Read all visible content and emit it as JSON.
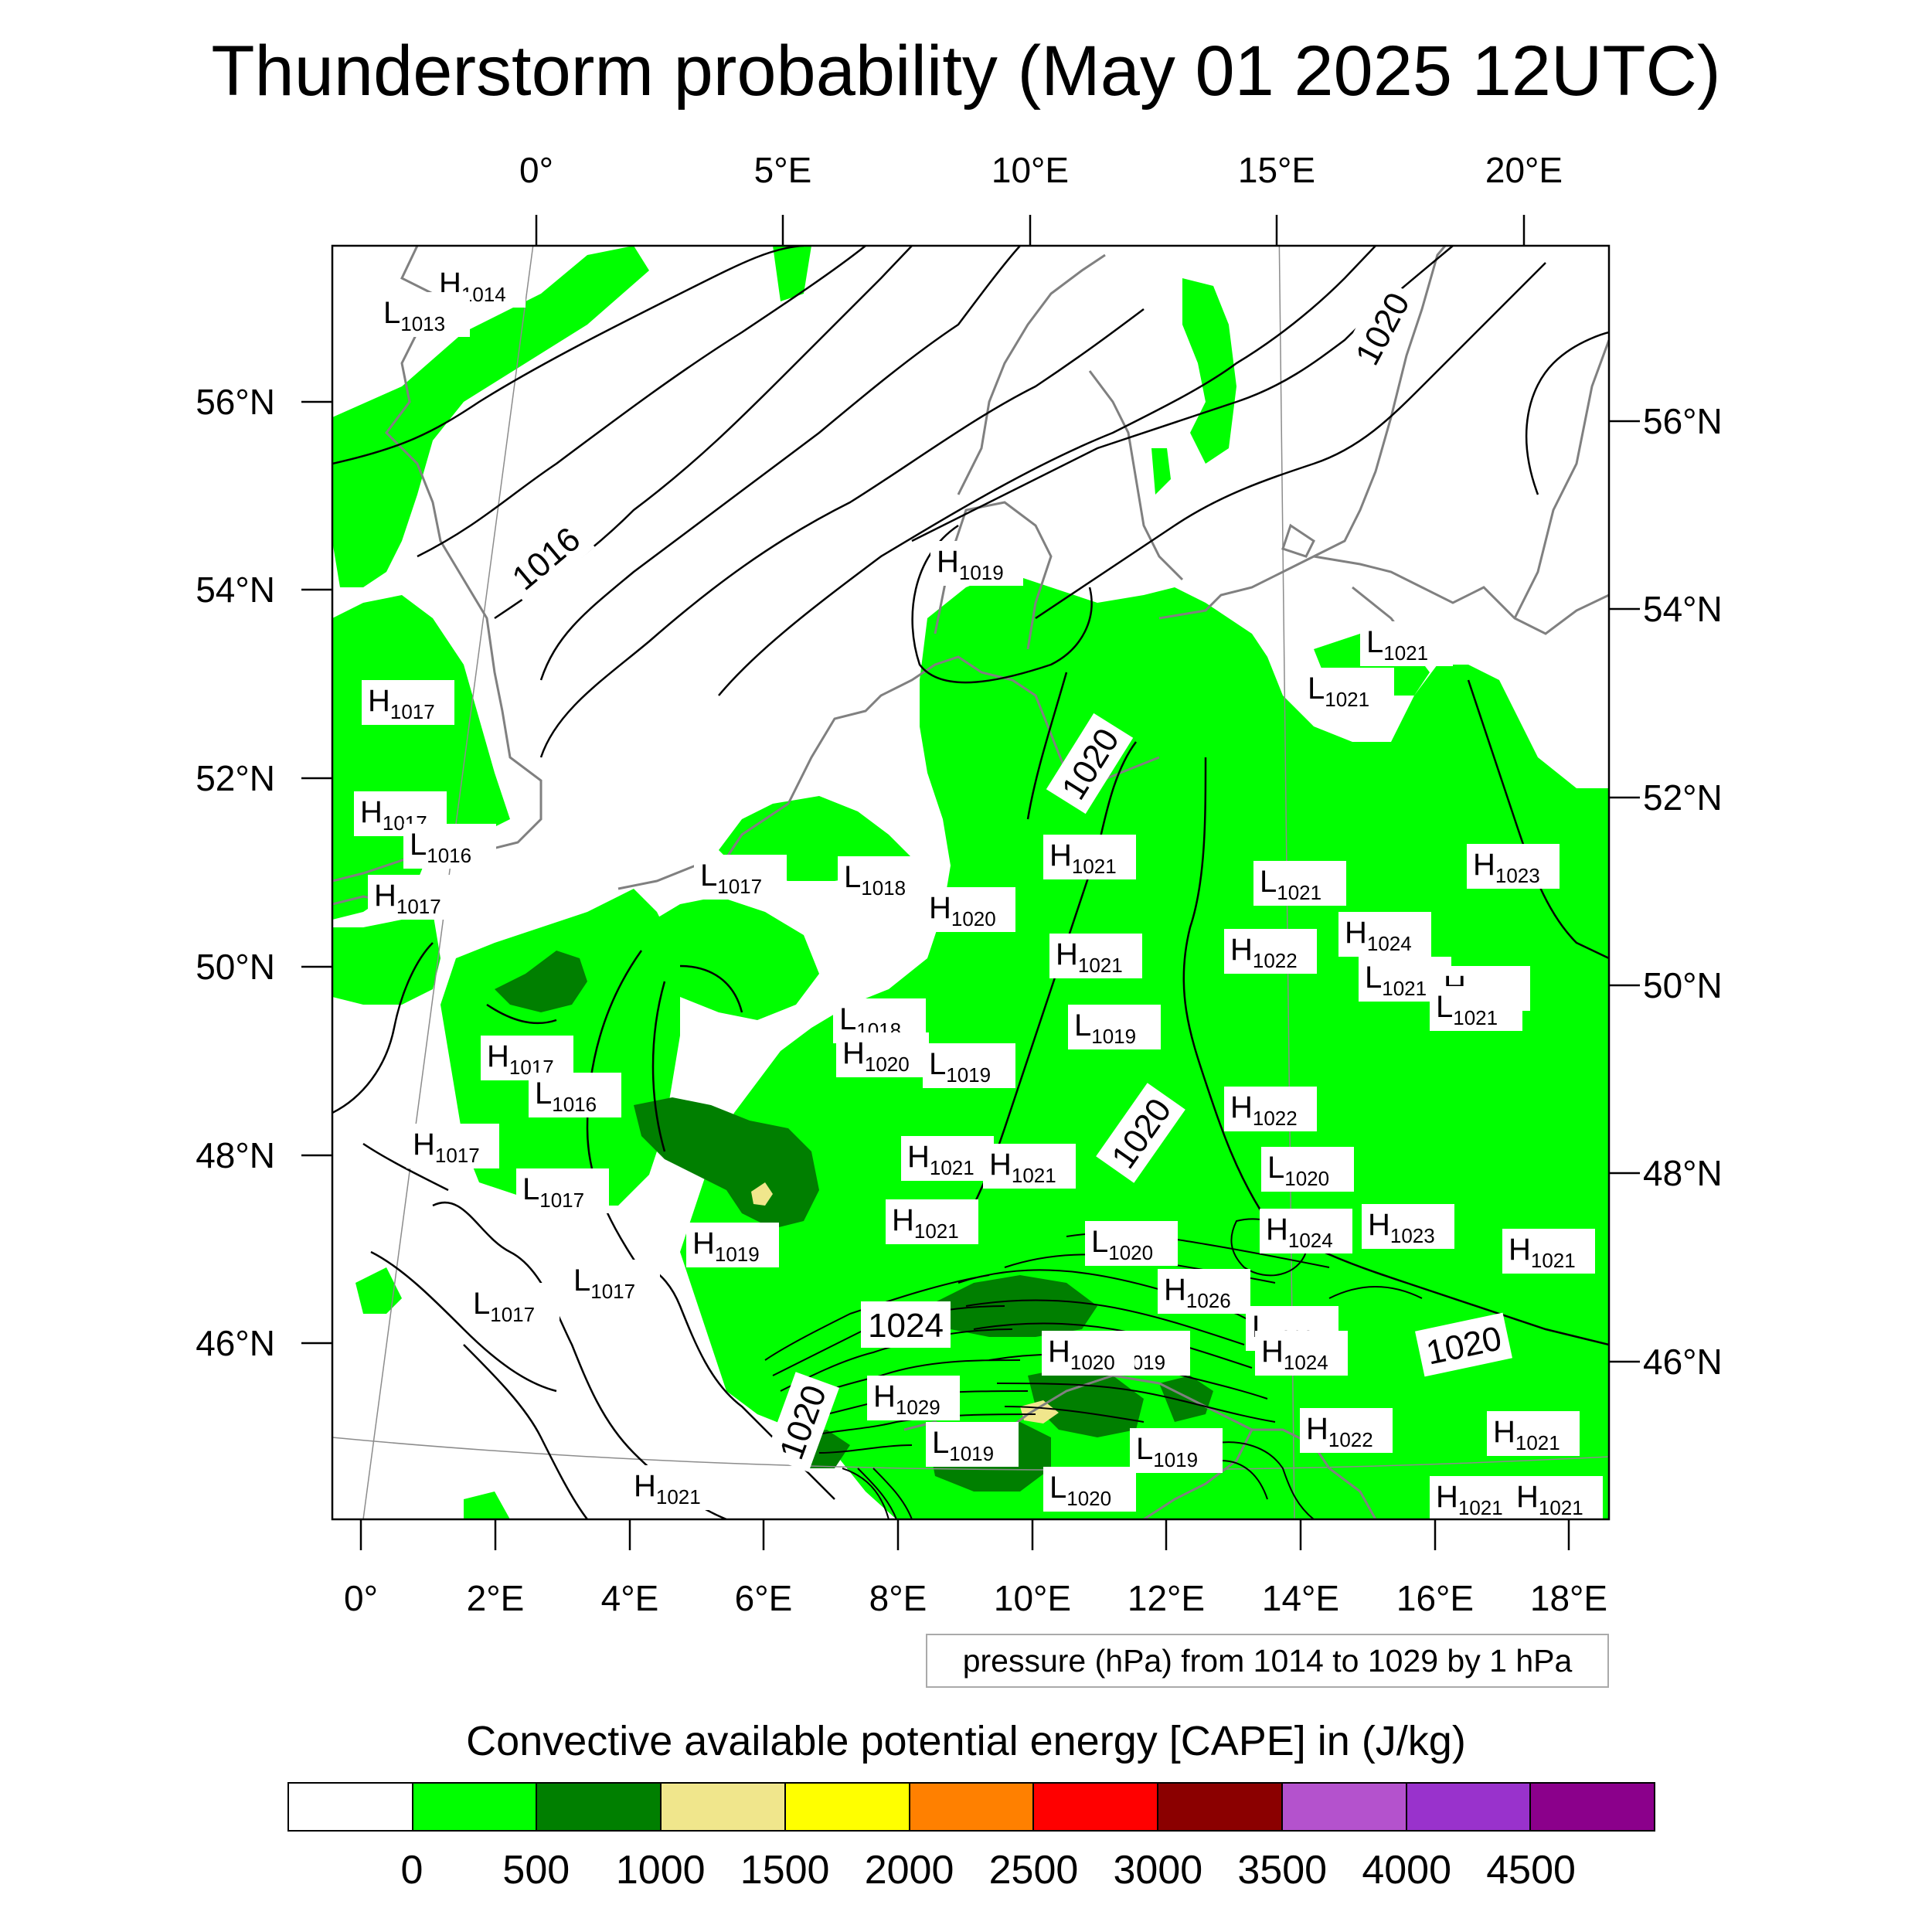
{
  "title": "Thunderstorm probability (May 01 2025 12UTC)",
  "axes": {
    "top_ticks": [
      "0°",
      "5°E",
      "10°E",
      "15°E",
      "20°E"
    ],
    "bottom_ticks": [
      "0°",
      "2°E",
      "4°E",
      "6°E",
      "8°E",
      "10°E",
      "12°E",
      "14°E",
      "16°E",
      "18°E"
    ],
    "left_ticks": [
      "56°N",
      "54°N",
      "52°N",
      "50°N",
      "48°N",
      "46°N"
    ],
    "right_ticks": [
      "56°N",
      "54°N",
      "52°N",
      "50°N",
      "48°N",
      "46°N"
    ]
  },
  "pressure_note": "pressure (hPa) from 1014 to 1029 by 1 hPa",
  "contour_labels": [
    "1016",
    "1020",
    "1020",
    "1020",
    "1024",
    "1020",
    "1020"
  ],
  "pressure_centers": [
    {
      "kind": "H",
      "value": "1014"
    },
    {
      "kind": "L",
      "value": "1013"
    },
    {
      "kind": "H",
      "value": "1019"
    },
    {
      "kind": "H",
      "value": "1017"
    },
    {
      "kind": "H",
      "value": "1017"
    },
    {
      "kind": "L",
      "value": "1016"
    },
    {
      "kind": "H",
      "value": "1017"
    },
    {
      "kind": "L",
      "value": "1017"
    },
    {
      "kind": "L",
      "value": "1018"
    },
    {
      "kind": "H",
      "value": "1020"
    },
    {
      "kind": "H",
      "value": "1021"
    },
    {
      "kind": "L",
      "value": "1021"
    },
    {
      "kind": "L",
      "value": "1021"
    },
    {
      "kind": "L",
      "value": "1021"
    },
    {
      "kind": "H",
      "value": "1023"
    },
    {
      "kind": "H",
      "value": "1021"
    },
    {
      "kind": "H",
      "value": "1022"
    },
    {
      "kind": "H",
      "value": "1024"
    },
    {
      "kind": "L",
      "value": "1021"
    },
    {
      "kind": "H",
      "value": "1023"
    },
    {
      "kind": "L",
      "value": "1021"
    },
    {
      "kind": "L",
      "value": "1019"
    },
    {
      "kind": "L",
      "value": "1018"
    },
    {
      "kind": "H",
      "value": "1020"
    },
    {
      "kind": "L",
      "value": "1019"
    },
    {
      "kind": "H",
      "value": "1017"
    },
    {
      "kind": "L",
      "value": "1016"
    },
    {
      "kind": "H",
      "value": "1022"
    },
    {
      "kind": "H",
      "value": "1017"
    },
    {
      "kind": "H",
      "value": "1021"
    },
    {
      "kind": "H",
      "value": "1021"
    },
    {
      "kind": "L",
      "value": "1020"
    },
    {
      "kind": "L",
      "value": "1017"
    },
    {
      "kind": "H",
      "value": "1021"
    },
    {
      "kind": "H",
      "value": "1024"
    },
    {
      "kind": "H",
      "value": "1023"
    },
    {
      "kind": "H",
      "value": "1019"
    },
    {
      "kind": "L",
      "value": "1020"
    },
    {
      "kind": "H",
      "value": "1021"
    },
    {
      "kind": "L",
      "value": "1017"
    },
    {
      "kind": "L",
      "value": "1017"
    },
    {
      "kind": "H",
      "value": "1026"
    },
    {
      "kind": "L",
      "value": "1020"
    },
    {
      "kind": "H",
      "value": "1024"
    },
    {
      "kind": "L",
      "value": "1019"
    },
    {
      "kind": "H",
      "value": "1020"
    },
    {
      "kind": "H",
      "value": "1029"
    },
    {
      "kind": "L",
      "value": "1019"
    },
    {
      "kind": "L",
      "value": "1019"
    },
    {
      "kind": "H",
      "value": "1022"
    },
    {
      "kind": "H",
      "value": "1021"
    },
    {
      "kind": "L",
      "value": "1020"
    },
    {
      "kind": "H",
      "value": "1021"
    },
    {
      "kind": "H",
      "value": "1021"
    },
    {
      "kind": "H",
      "value": "1021"
    }
  ],
  "cape_title": "Convective available potential energy [CAPE] in (J/kg)",
  "colorbar": {
    "colors": [
      "#ffffff",
      "#00ff00",
      "#007f00",
      "#f0e68c",
      "#ffff00",
      "#ff8000",
      "#ff0000",
      "#8b0000",
      "#b452cd",
      "#9932cc",
      "#8b008b"
    ],
    "labels": [
      "0",
      "500",
      "1000",
      "1500",
      "2000",
      "2500",
      "3000",
      "3500",
      "4000",
      "4500"
    ]
  },
  "palette": {
    "cape_green": "#00ff00",
    "cape_dark_green": "#007f00",
    "cape_khaki": "#f0e68c",
    "coast": "#808080",
    "isobar": "#000000"
  }
}
